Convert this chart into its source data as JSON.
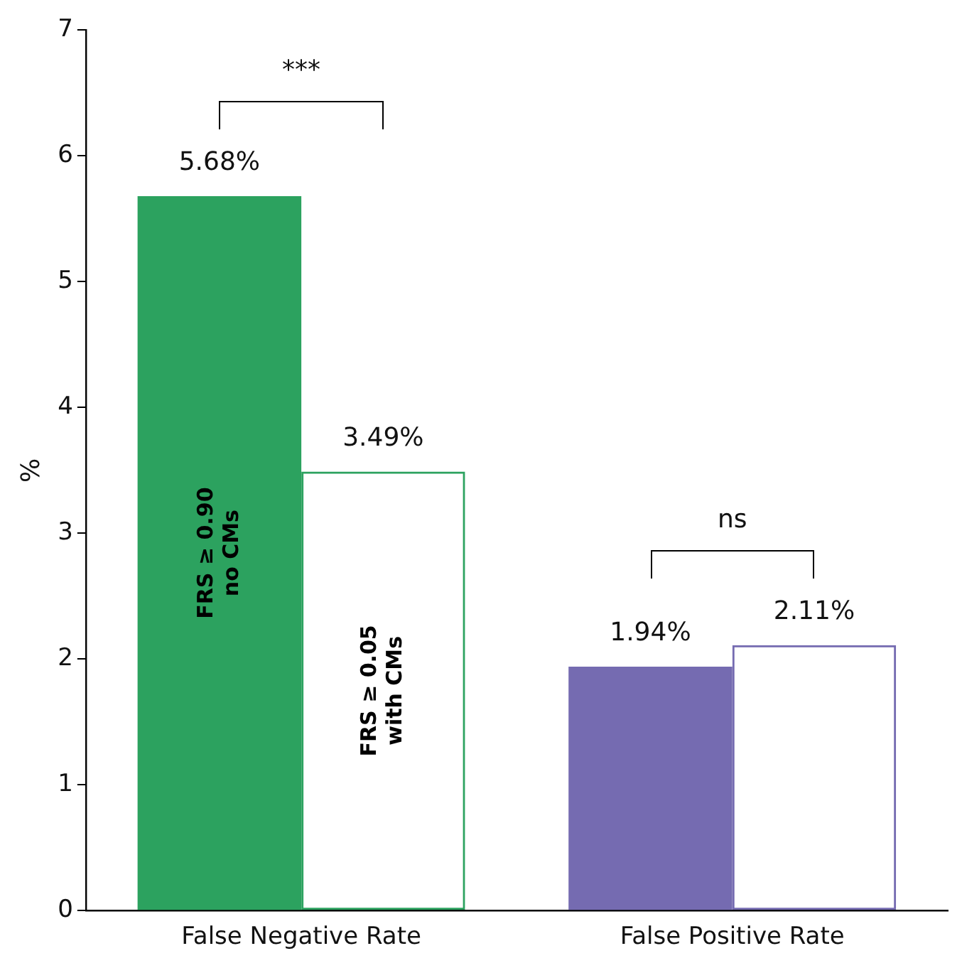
{
  "chart_data": {
    "type": "bar",
    "categories": [
      "False Negative Rate",
      "False Positive Rate"
    ],
    "ylabel": "%",
    "ylim": [
      0,
      7
    ],
    "yticks": [
      0,
      1,
      2,
      3,
      4,
      5,
      6,
      7
    ],
    "grid": false,
    "legend": false,
    "series": [
      {
        "name": "FRS ≥ 0.90\nno CMs",
        "colors": [
          "#2ca25f",
          "#756bb1"
        ],
        "values": [
          5.68,
          1.94
        ],
        "value_labels": [
          "5.68%",
          "1.94%"
        ]
      },
      {
        "name": "FRS ≥ 0.05\nwith CMs",
        "colors": [
          "#2ca25f",
          "#756bb1"
        ],
        "values": [
          3.49,
          2.11
        ],
        "value_labels": [
          "3.49%",
          "2.11%"
        ]
      }
    ],
    "annotations": [
      "***",
      "ns"
    ]
  }
}
